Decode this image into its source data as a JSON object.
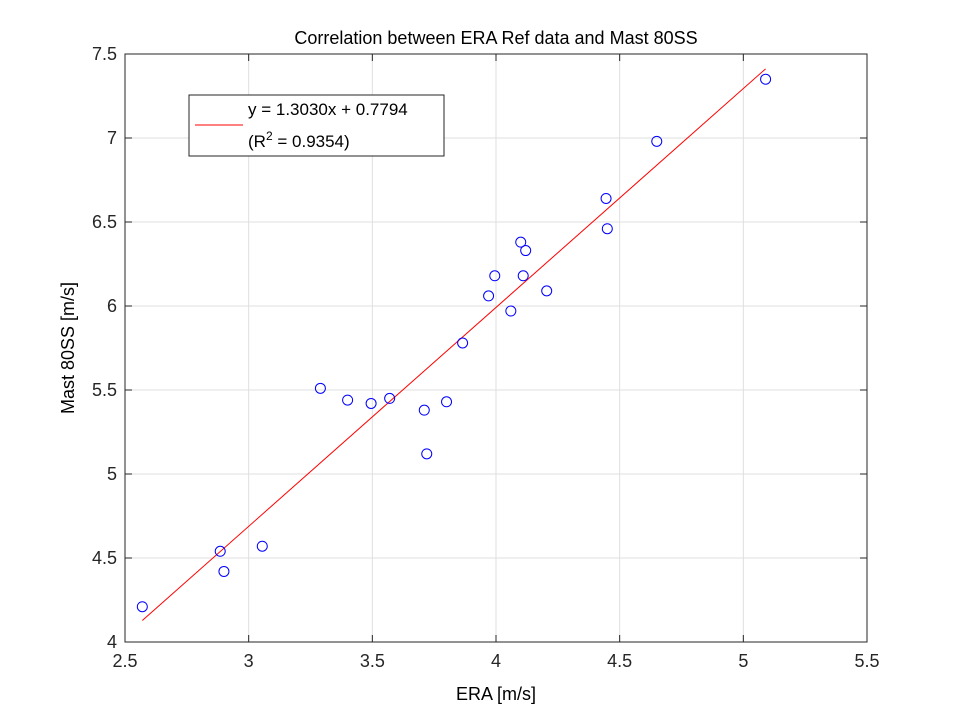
{
  "chart_data": {
    "type": "scatter",
    "title": "Correlation between ERA Ref data and Mast 80SS",
    "xlabel": "ERA [m/s]",
    "ylabel": "Mast 80SS [m/s]",
    "xlim": [
      2.5,
      5.5
    ],
    "ylim": [
      4,
      7.5
    ],
    "xticks": [
      "2.5",
      "3",
      "3.5",
      "4",
      "4.5",
      "5",
      "5.5"
    ],
    "yticks": [
      "4",
      "4.5",
      "5",
      "5.5",
      "6",
      "6.5",
      "7",
      "7.5"
    ],
    "grid": true,
    "legend_position": "top-left",
    "colors": {
      "points": "#0000ff",
      "fit": "#ff0000"
    },
    "points": {
      "x": [
        2.57,
        2.885,
        2.9,
        3.055,
        3.29,
        3.4,
        3.495,
        3.57,
        3.71,
        3.72,
        3.8,
        3.865,
        3.97,
        3.995,
        4.06,
        4.1,
        4.11,
        4.12,
        4.205,
        4.445,
        4.45,
        4.65,
        5.09
      ],
      "y": [
        4.21,
        4.54,
        4.42,
        4.57,
        5.51,
        5.44,
        5.42,
        5.45,
        5.38,
        5.12,
        5.43,
        5.78,
        6.06,
        6.18,
        5.97,
        6.38,
        6.18,
        6.33,
        6.09,
        6.64,
        6.46,
        6.98,
        7.35
      ]
    },
    "fit": {
      "slope": 1.303,
      "intercept": 0.7794,
      "x_range": [
        2.57,
        5.09
      ],
      "label_line1": "y = 1.3030x + 0.7794",
      "label_line2_prefix": "(R",
      "label_line2_sup": "2",
      "label_line2_suffix": " = 0.9354)"
    }
  }
}
